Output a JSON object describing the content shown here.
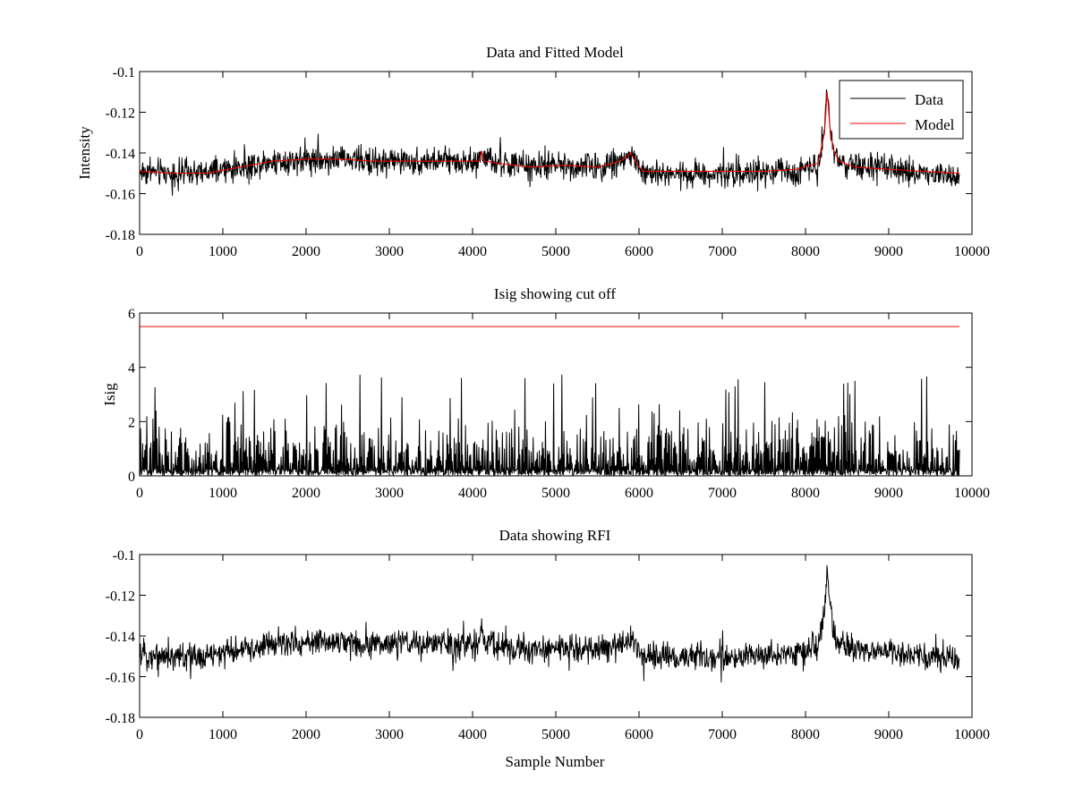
{
  "colors": {
    "data": "#000000",
    "model": "#ff0000",
    "threshold": "#ff0000",
    "frame": "#000000"
  },
  "chart_data": [
    {
      "type": "line",
      "title": "Data and Fitted Model",
      "xlabel": "",
      "ylabel": "Intensity",
      "xlim": [
        0,
        10000
      ],
      "ylim": [
        -0.18,
        -0.1
      ],
      "xticks": [
        0,
        1000,
        2000,
        3000,
        4000,
        5000,
        6000,
        7000,
        8000,
        9000,
        10000
      ],
      "yticks": [
        -0.1,
        -0.12,
        -0.14,
        -0.16,
        -0.18
      ],
      "xticklabels": [
        "0",
        "1000",
        "2000",
        "3000",
        "4000",
        "5000",
        "6000",
        "7000",
        "8000",
        "9000",
        "10000"
      ],
      "yticklabels": [
        "-0.1",
        "-0.12",
        "-0.14",
        "-0.16",
        "-0.18"
      ],
      "legend_position": "top-right",
      "series": [
        {
          "name": "Data",
          "color": "#000000",
          "style": "noisy",
          "noise_amplitude": 0.005,
          "x": [
            0,
            400,
            800,
            1200,
            1600,
            2000,
            2400,
            2800,
            3200,
            3600,
            4000,
            4080,
            4110,
            4140,
            4300,
            4700,
            5100,
            5500,
            5700,
            5820,
            5900,
            5980,
            6050,
            6500,
            7000,
            7500,
            7900,
            8150,
            8230,
            8260,
            8290,
            8330,
            8400,
            8600,
            9000,
            9400,
            9850
          ],
          "y": [
            -0.149,
            -0.15,
            -0.15,
            -0.147,
            -0.144,
            -0.143,
            -0.143,
            -0.144,
            -0.144,
            -0.144,
            -0.144,
            -0.144,
            -0.137,
            -0.144,
            -0.145,
            -0.147,
            -0.146,
            -0.147,
            -0.145,
            -0.143,
            -0.14,
            -0.146,
            -0.15,
            -0.15,
            -0.15,
            -0.15,
            -0.149,
            -0.145,
            -0.128,
            -0.106,
            -0.124,
            -0.138,
            -0.144,
            -0.147,
            -0.148,
            -0.15,
            -0.151
          ]
        },
        {
          "name": "Model",
          "color": "#ff0000",
          "style": "smooth",
          "x": [
            0,
            400,
            800,
            1200,
            1600,
            2000,
            2400,
            2800,
            3200,
            3600,
            4000,
            4080,
            4110,
            4140,
            4300,
            4700,
            5100,
            5500,
            5700,
            5820,
            5900,
            5980,
            6050,
            6500,
            7000,
            7500,
            7900,
            8150,
            8230,
            8260,
            8290,
            8330,
            8400,
            8600,
            9000,
            9400,
            9850
          ],
          "y": [
            -0.149,
            -0.15,
            -0.15,
            -0.147,
            -0.144,
            -0.143,
            -0.143,
            -0.144,
            -0.144,
            -0.144,
            -0.144,
            -0.144,
            -0.139,
            -0.144,
            -0.145,
            -0.147,
            -0.146,
            -0.147,
            -0.145,
            -0.143,
            -0.14,
            -0.146,
            -0.149,
            -0.149,
            -0.149,
            -0.149,
            -0.148,
            -0.145,
            -0.13,
            -0.11,
            -0.126,
            -0.138,
            -0.144,
            -0.147,
            -0.148,
            -0.149,
            -0.15
          ]
        }
      ]
    },
    {
      "type": "line",
      "title": "Isig showing cut off",
      "xlabel": "",
      "ylabel": "Isig",
      "xlim": [
        0,
        10000
      ],
      "ylim": [
        0,
        6
      ],
      "xticks": [
        0,
        1000,
        2000,
        3000,
        4000,
        5000,
        6000,
        7000,
        8000,
        9000,
        10000
      ],
      "yticks": [
        0,
        2,
        4,
        6
      ],
      "xticklabels": [
        "0",
        "1000",
        "2000",
        "3000",
        "4000",
        "5000",
        "6000",
        "7000",
        "8000",
        "9000",
        "10000"
      ],
      "yticklabels": [
        "0",
        "2",
        "4",
        "6"
      ],
      "series": [
        {
          "name": "",
          "color": "#000000",
          "style": "spiky",
          "x": [
            0,
            9850
          ],
          "y": [
            0.8,
            0.8
          ],
          "typical_max": 2.2,
          "peak_max": 3.8
        },
        {
          "name": "",
          "color": "#ff0000",
          "style": "flat",
          "x": [
            0,
            9850
          ],
          "y": [
            5.5,
            5.5
          ]
        }
      ]
    },
    {
      "type": "line",
      "title": "Data showing RFI",
      "xlabel": "Sample Number",
      "ylabel": "",
      "xlim": [
        0,
        10000
      ],
      "ylim": [
        -0.18,
        -0.1
      ],
      "xticks": [
        0,
        1000,
        2000,
        3000,
        4000,
        5000,
        6000,
        7000,
        8000,
        9000,
        10000
      ],
      "yticks": [
        -0.1,
        -0.12,
        -0.14,
        -0.16,
        -0.18
      ],
      "xticklabels": [
        "0",
        "1000",
        "2000",
        "3000",
        "4000",
        "5000",
        "6000",
        "7000",
        "8000",
        "9000",
        "10000"
      ],
      "yticklabels": [
        "-0.1",
        "-0.12",
        "-0.14",
        "-0.16",
        "-0.18"
      ],
      "series": [
        {
          "name": "",
          "color": "#000000",
          "style": "noisy",
          "noise_amplitude": 0.005,
          "x": [
            0,
            400,
            800,
            1200,
            1600,
            2000,
            2400,
            2800,
            3200,
            3600,
            4000,
            4080,
            4110,
            4140,
            4300,
            4700,
            5100,
            5500,
            5700,
            5820,
            5900,
            5980,
            6050,
            6500,
            7000,
            7500,
            7900,
            8150,
            8230,
            8260,
            8290,
            8330,
            8400,
            8600,
            9000,
            9400,
            9850
          ],
          "y": [
            -0.149,
            -0.15,
            -0.15,
            -0.147,
            -0.144,
            -0.143,
            -0.143,
            -0.144,
            -0.144,
            -0.144,
            -0.144,
            -0.144,
            -0.137,
            -0.144,
            -0.145,
            -0.147,
            -0.146,
            -0.147,
            -0.145,
            -0.143,
            -0.14,
            -0.146,
            -0.15,
            -0.15,
            -0.15,
            -0.15,
            -0.149,
            -0.145,
            -0.128,
            -0.106,
            -0.124,
            -0.138,
            -0.144,
            -0.147,
            -0.148,
            -0.15,
            -0.151
          ]
        }
      ]
    }
  ]
}
